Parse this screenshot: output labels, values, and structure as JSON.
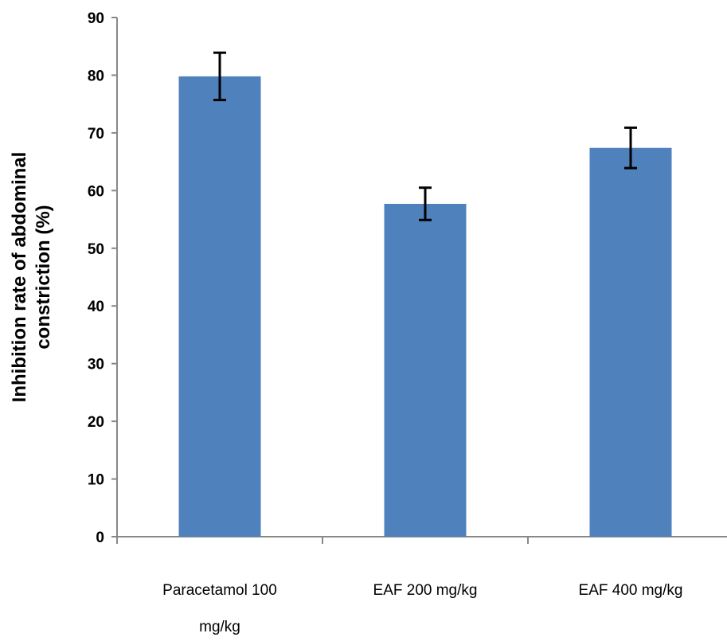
{
  "colors": {
    "bar": "#4f81bd",
    "axis": "#888888",
    "errorbar": "#000000"
  },
  "chart_data": {
    "type": "bar",
    "categories": [
      [
        "Paracetamol 100",
        "mg/kg"
      ],
      [
        "EAF 200 mg/kg"
      ],
      [
        "EAF 400 mg/kg"
      ]
    ],
    "values": [
      79.8,
      57.7,
      67.4
    ],
    "errors": [
      4.1,
      2.8,
      3.5
    ],
    "ylabel_lines": [
      "Inhibition rate of abdominal",
      "constriction (%)"
    ],
    "xlabel": "",
    "title": "",
    "ylim": [
      0,
      90
    ],
    "yticks": [
      0,
      10,
      20,
      30,
      40,
      50,
      60,
      70,
      80,
      90
    ],
    "ytick_labels": [
      "0",
      "10",
      "20",
      "30",
      "40",
      "50",
      "60",
      "70",
      "80",
      "90"
    ],
    "grid": false,
    "legend": "none"
  }
}
